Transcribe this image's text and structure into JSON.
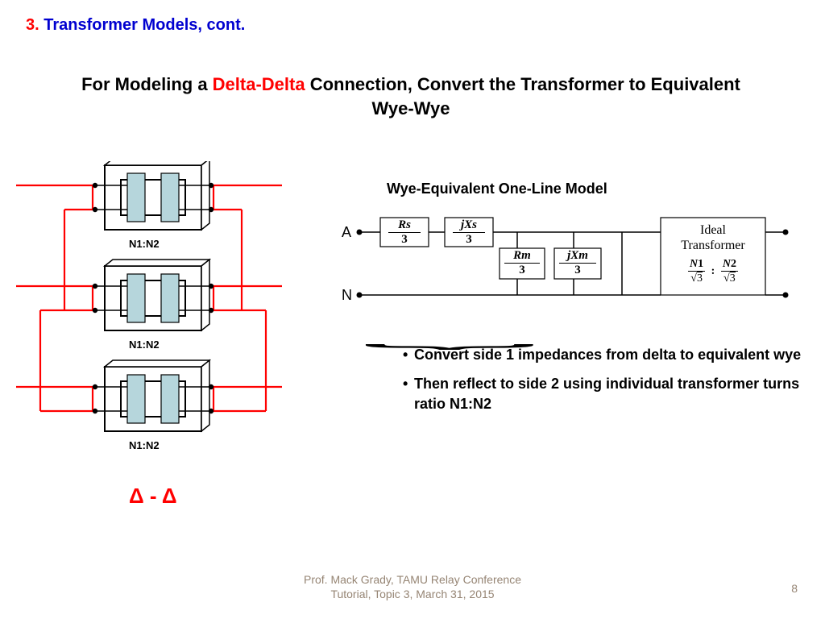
{
  "heading": {
    "num": "3.",
    "text": "Transformer Models, cont."
  },
  "title_pre": "For Modeling a ",
  "title_red": "Delta-Delta",
  "title_post": " Connection, Convert the Transformer to Equivalent Wye-Wye",
  "left_diagram": {
    "ratio_label": "N1:N2",
    "delta_symbol": "Δ - Δ",
    "wire_color": "#ff0000",
    "core_fill": "#b6d6dc",
    "core_stroke": "#000000",
    "dot_color": "#000000"
  },
  "oneline": {
    "title": "Wye-Equivalent One-Line Model",
    "terminal_A": "A",
    "terminal_N": "N",
    "box_Rs": {
      "num": "Rs",
      "den": "3"
    },
    "box_jXs": {
      "num": "jXs",
      "den": "3"
    },
    "box_Rm": {
      "num": "Rm",
      "den": "3"
    },
    "box_jXm": {
      "num": "Xm",
      "den": "3",
      "prefix": "j"
    },
    "ideal": {
      "line1": "Ideal",
      "line2": "Transformer",
      "ratio_n1": "N",
      "ratio_1": "1",
      "ratio_n2": "N",
      "ratio_2": "2",
      "root": "3"
    }
  },
  "bullets": [
    "Convert side 1 impedances from delta to equivalent wye",
    "Then reflect to side 2 using individual transformer turns ratio N1:N2"
  ],
  "footer": {
    "line1": "Prof. Mack Grady, TAMU Relay Conference",
    "line2": "Tutorial, Topic 3, March 31, 2015"
  },
  "page": "8"
}
